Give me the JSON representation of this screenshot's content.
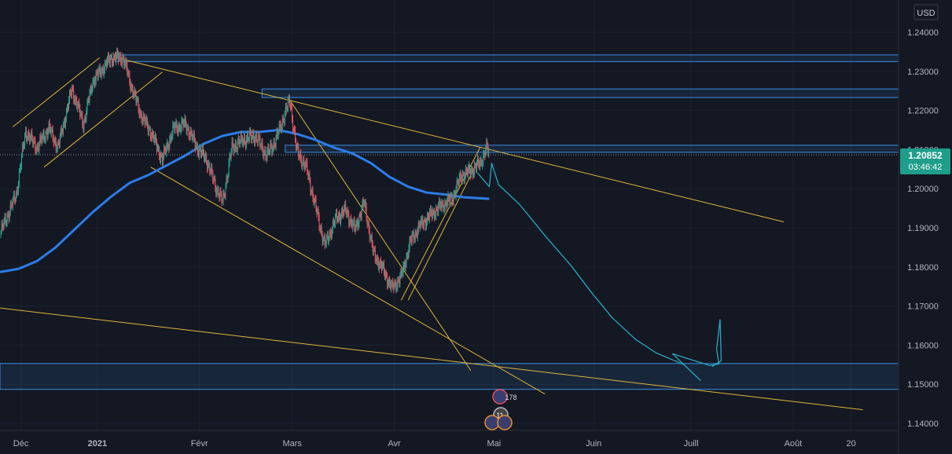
{
  "currency_button": "USD",
  "price_tag": {
    "price": "1.20852",
    "countdown": "03:46:42",
    "value": 1.20852
  },
  "events": {
    "top_badge": "178",
    "bottom_badge": "11"
  },
  "colors": {
    "background": "#141823",
    "up_candle": "#2e9d8d",
    "down_candle": "#e0525e",
    "moving_average": "#2b7de9",
    "trendlines": "#e0b63a",
    "zones": "#3a8ee6",
    "projection": "#28a8c0",
    "price_tag": "#1f9e8c"
  },
  "chart_data": {
    "type": "candlestick",
    "x_axis_labels": [
      {
        "text": "Déc",
        "t": 0.9
      },
      {
        "text": "2021",
        "t": 4.2
      },
      {
        "text": "Févr",
        "t": 8.6
      },
      {
        "text": "Mars",
        "t": 12.6
      },
      {
        "text": "Avr",
        "t": 17.0
      },
      {
        "text": "Mai",
        "t": 21.3
      },
      {
        "text": "Juin",
        "t": 25.6
      },
      {
        "text": "Juill",
        "t": 29.8
      },
      {
        "text": "Août",
        "t": 34.2
      },
      {
        "text": "20",
        "t": 36.7
      }
    ],
    "y_axis_ticks": [
      "1.24000",
      "1.23000",
      "1.22000",
      "1.21000",
      "1.20000",
      "1.19000",
      "1.18000",
      "1.17000",
      "1.16000",
      "1.15000",
      "1.14000"
    ],
    "ylim": [
      1.1385,
      1.2455
    ],
    "close_path": [
      [
        0,
        1.1885
      ],
      [
        0.7,
        1.1985
      ],
      [
        1.1,
        1.2145
      ],
      [
        1.6,
        1.2105
      ],
      [
        2.1,
        1.2155
      ],
      [
        2.5,
        1.2105
      ],
      [
        3.1,
        1.2255
      ],
      [
        3.6,
        1.2165
      ],
      [
        4.0,
        1.2275
      ],
      [
        4.4,
        1.2305
      ],
      [
        4.8,
        1.2335
      ],
      [
        5.3,
        1.2335
      ],
      [
        5.7,
        1.2255
      ],
      [
        6.1,
        1.2185
      ],
      [
        6.5,
        1.2145
      ],
      [
        7.0,
        1.2075
      ],
      [
        7.5,
        1.2155
      ],
      [
        8.0,
        1.2165
      ],
      [
        8.5,
        1.2105
      ],
      [
        8.9,
        1.2075
      ],
      [
        9.3,
        1.2005
      ],
      [
        9.6,
        1.1965
      ],
      [
        10.0,
        1.2105
      ],
      [
        10.5,
        1.2125
      ],
      [
        11.0,
        1.2135
      ],
      [
        11.5,
        1.2085
      ],
      [
        11.9,
        1.2125
      ],
      [
        12.3,
        1.2195
      ],
      [
        12.5,
        1.2225
      ],
      [
        12.8,
        1.2095
      ],
      [
        13.2,
        1.2055
      ],
      [
        13.6,
        1.1955
      ],
      [
        14.0,
        1.1855
      ],
      [
        14.5,
        1.1925
      ],
      [
        14.9,
        1.1945
      ],
      [
        15.3,
        1.1895
      ],
      [
        15.7,
        1.1965
      ],
      [
        16.1,
        1.1835
      ],
      [
        16.5,
        1.1795
      ],
      [
        16.9,
        1.1745
      ],
      [
        17.3,
        1.1775
      ],
      [
        17.7,
        1.1865
      ],
      [
        18.1,
        1.1905
      ],
      [
        18.6,
        1.1935
      ],
      [
        19.0,
        1.1955
      ],
      [
        19.5,
        1.1975
      ],
      [
        19.9,
        1.2035
      ],
      [
        20.3,
        1.2045
      ],
      [
        20.7,
        1.2065
      ],
      [
        21.0,
        1.2105
      ],
      [
        21.1,
        1.2085
      ]
    ],
    "moving_average": [
      [
        0,
        1.1787
      ],
      [
        0.8,
        1.1795
      ],
      [
        1.6,
        1.1815
      ],
      [
        2.4,
        1.185
      ],
      [
        3.2,
        1.1895
      ],
      [
        4.0,
        1.194
      ],
      [
        4.8,
        1.198
      ],
      [
        5.6,
        1.2015
      ],
      [
        6.4,
        1.2035
      ],
      [
        7.2,
        1.206
      ],
      [
        8.0,
        1.2085
      ],
      [
        8.8,
        1.2115
      ],
      [
        9.6,
        1.2135
      ],
      [
        10.4,
        1.2145
      ],
      [
        11.2,
        1.2145
      ],
      [
        12.0,
        1.215
      ],
      [
        12.8,
        1.214
      ],
      [
        13.6,
        1.2125
      ],
      [
        14.4,
        1.2105
      ],
      [
        15.2,
        1.209
      ],
      [
        16.0,
        1.2065
      ],
      [
        16.8,
        1.203
      ],
      [
        17.6,
        1.2005
      ],
      [
        18.4,
        1.199
      ],
      [
        19.2,
        1.1985
      ],
      [
        20.0,
        1.1978
      ],
      [
        20.8,
        1.1975
      ],
      [
        21.1,
        1.1974
      ]
    ],
    "trendlines": [
      [
        [
          0.55,
          1.2158
        ],
        [
          4.3,
          1.2335
        ]
      ],
      [
        [
          1.9,
          1.2055
        ],
        [
          7.0,
          1.2298
        ]
      ],
      [
        [
          5.0,
          1.2335
        ],
        [
          33.8,
          1.1915
        ]
      ],
      [
        [
          6.5,
          1.2055
        ],
        [
          23.5,
          1.1475
        ]
      ],
      [
        [
          12.4,
          1.2235
        ],
        [
          20.3,
          1.1535
        ]
      ],
      [
        [
          17.3,
          1.1715
        ],
        [
          20.7,
          1.2105
        ]
      ],
      [
        [
          17.6,
          1.1715
        ],
        [
          20.6,
          1.207
        ]
      ],
      [
        [
          0,
          1.1695
        ],
        [
          37.2,
          1.1435
        ]
      ]
    ],
    "horizontal_zones": [
      {
        "from_t": 5.0,
        "y_top": 1.2342,
        "y_bottom": 1.2325
      },
      {
        "from_t": 11.3,
        "y_top": 1.2255,
        "y_bottom": 1.2233
      },
      {
        "from_t": 12.3,
        "y_top": 1.2111,
        "y_bottom": 1.2093
      },
      {
        "from_t": 0,
        "y_top": 1.1553,
        "y_bottom": 1.1487
      }
    ],
    "projection_path": [
      [
        20.6,
        1.204
      ],
      [
        21.1,
        1.2005
      ],
      [
        21.2,
        1.2065
      ],
      [
        21.5,
        1.201
      ],
      [
        22.4,
        1.196
      ],
      [
        23.5,
        1.188
      ],
      [
        24.6,
        1.1805
      ],
      [
        25.5,
        1.1735
      ],
      [
        26.4,
        1.167
      ],
      [
        27.4,
        1.1615
      ],
      [
        28.3,
        1.158
      ],
      [
        29.5,
        1.155
      ],
      [
        30.2,
        1.151
      ],
      [
        29.0,
        1.1578
      ],
      [
        30.6,
        1.1548
      ],
      [
        31.0,
        1.1552
      ],
      [
        30.9,
        1.159
      ],
      [
        31.05,
        1.1665
      ],
      [
        31.1,
        1.156
      ],
      [
        30.7,
        1.1545
      ]
    ]
  }
}
